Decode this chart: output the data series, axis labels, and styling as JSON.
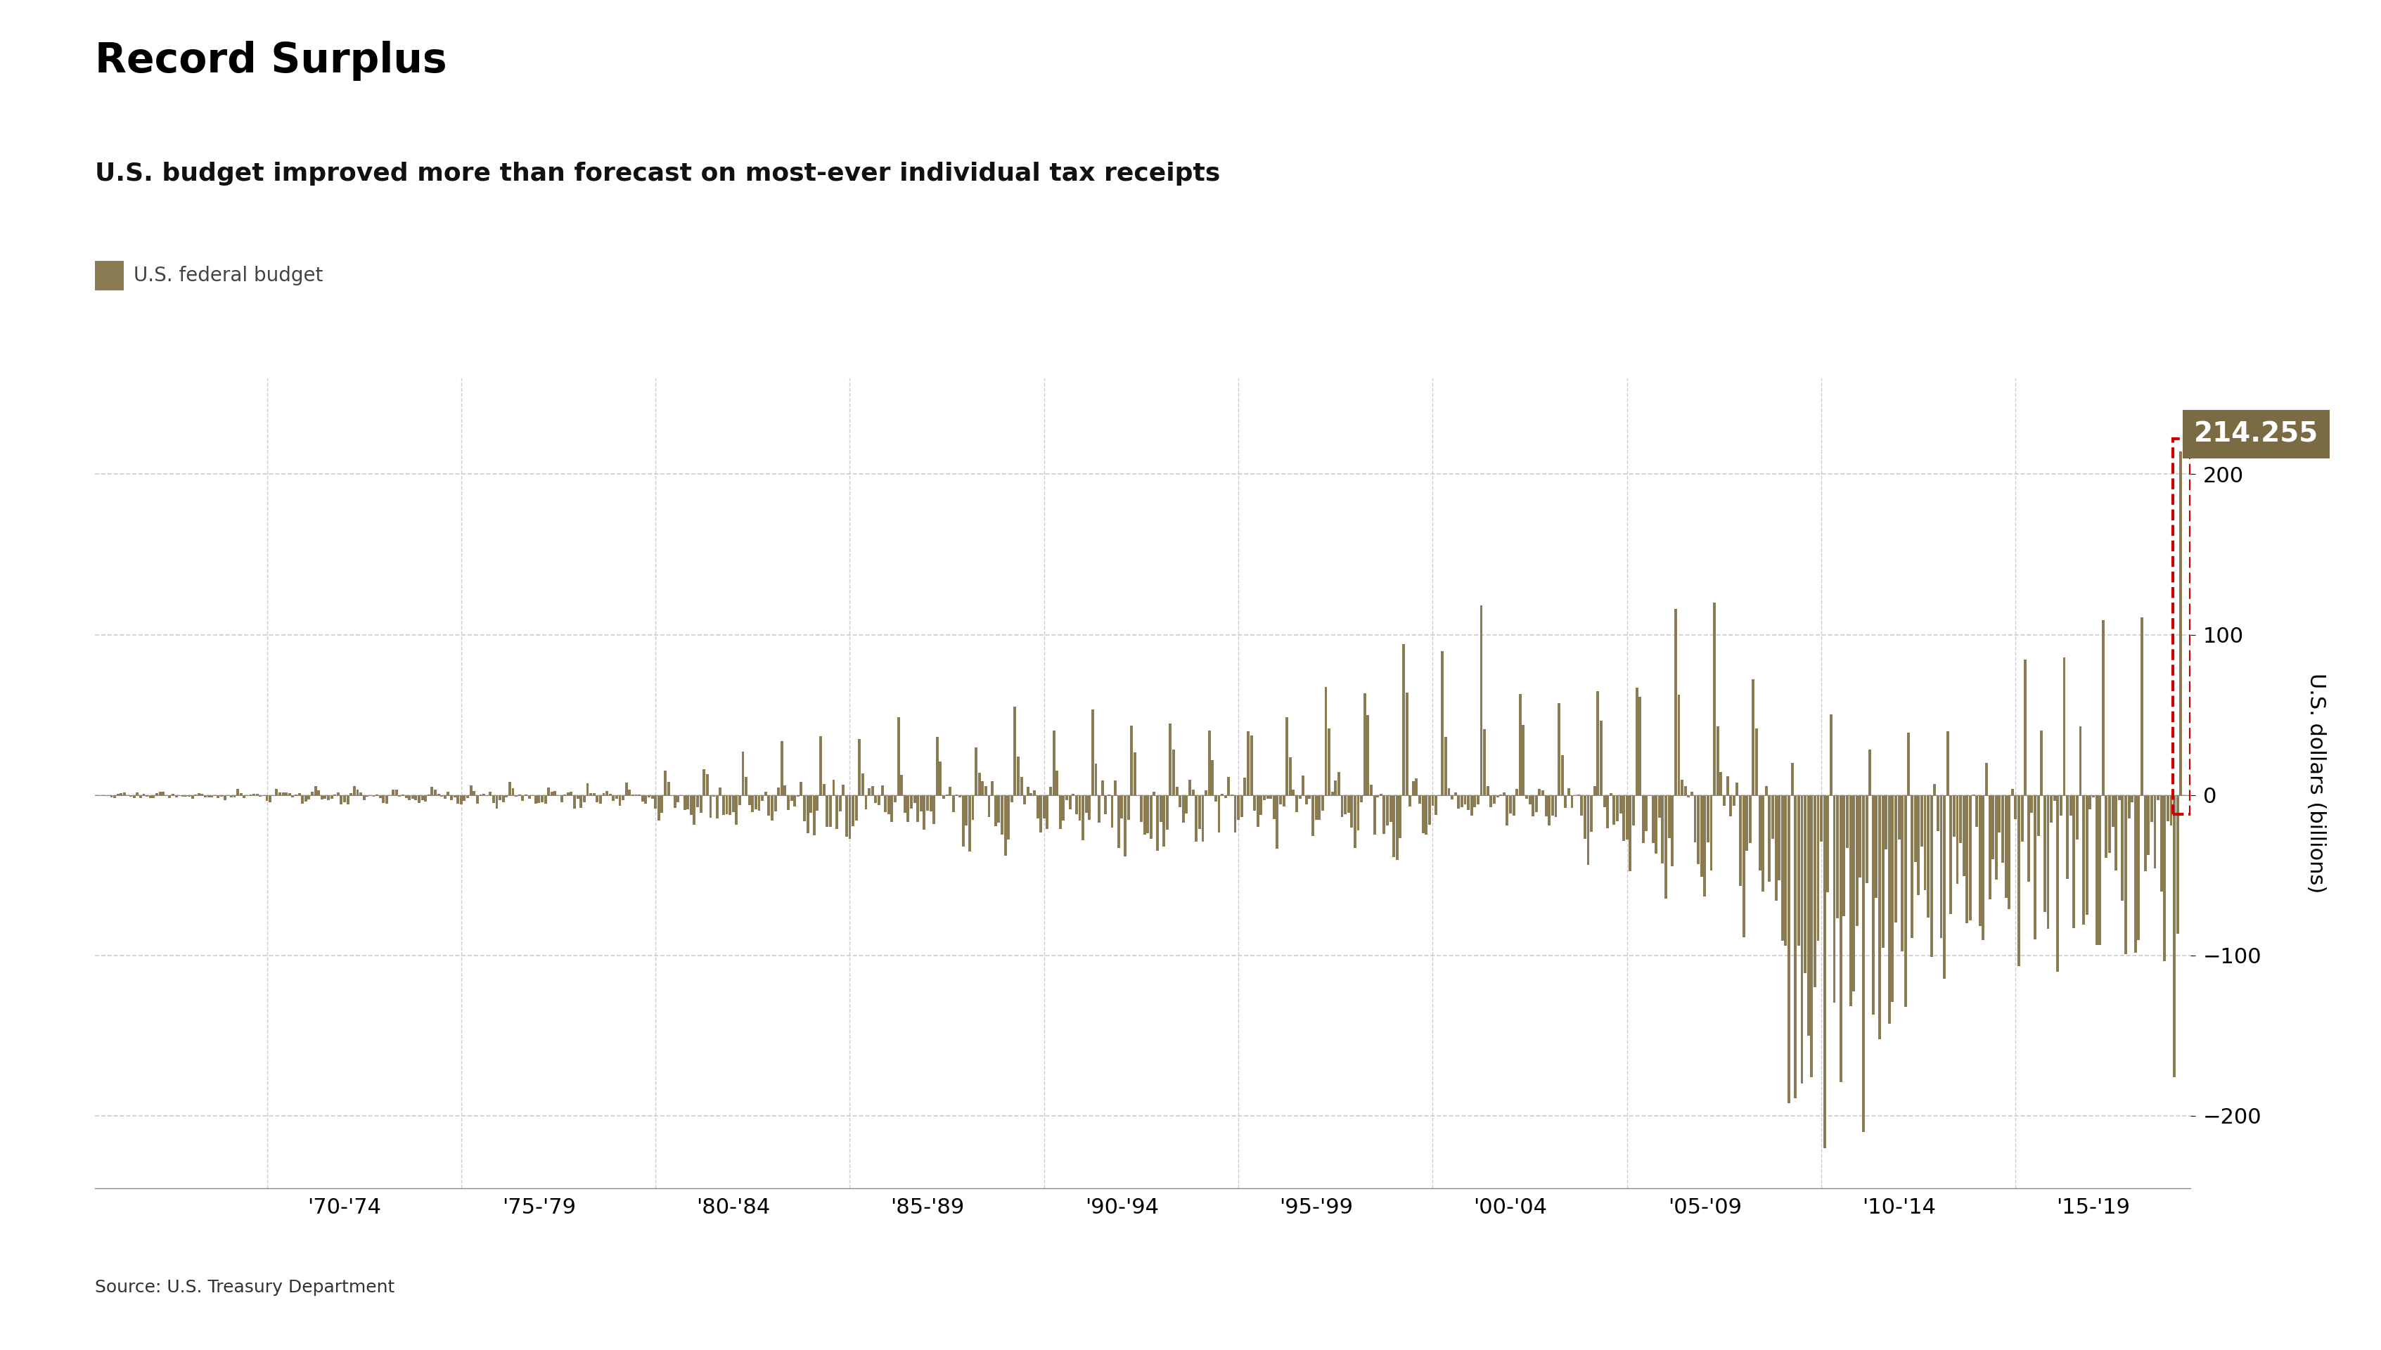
{
  "title": "Record Surplus",
  "subtitle": "U.S. budget improved more than forecast on most-ever individual tax receipts",
  "legend_label": "U.S. federal budget",
  "ylabel": "U.S. dollars (billions)",
  "source": "Source: U.S. Treasury Department",
  "bar_color": "#8B7B52",
  "highlight_value": "214.255",
  "highlight_bg": "#7A6B44",
  "red_box_color": "#CC0000",
  "bg_color": "#FFFFFF",
  "grid_color": "#CCCCCC",
  "yticks": [
    -200,
    -100,
    0,
    100,
    200
  ],
  "ylim": [
    -245,
    260
  ],
  "xtick_labels": [
    "'70-'74",
    "'75-'79",
    "'80-'84",
    "'85-'89",
    "'90-'94",
    "'95-'99",
    "'00-'04",
    "'05-'09",
    "'10-'14",
    "'15-'19"
  ],
  "start_year": 1966,
  "title_fontsize": 42,
  "subtitle_fontsize": 26,
  "legend_fontsize": 20,
  "axis_fontsize": 22,
  "annot_fontsize": 28,
  "source_fontsize": 18
}
